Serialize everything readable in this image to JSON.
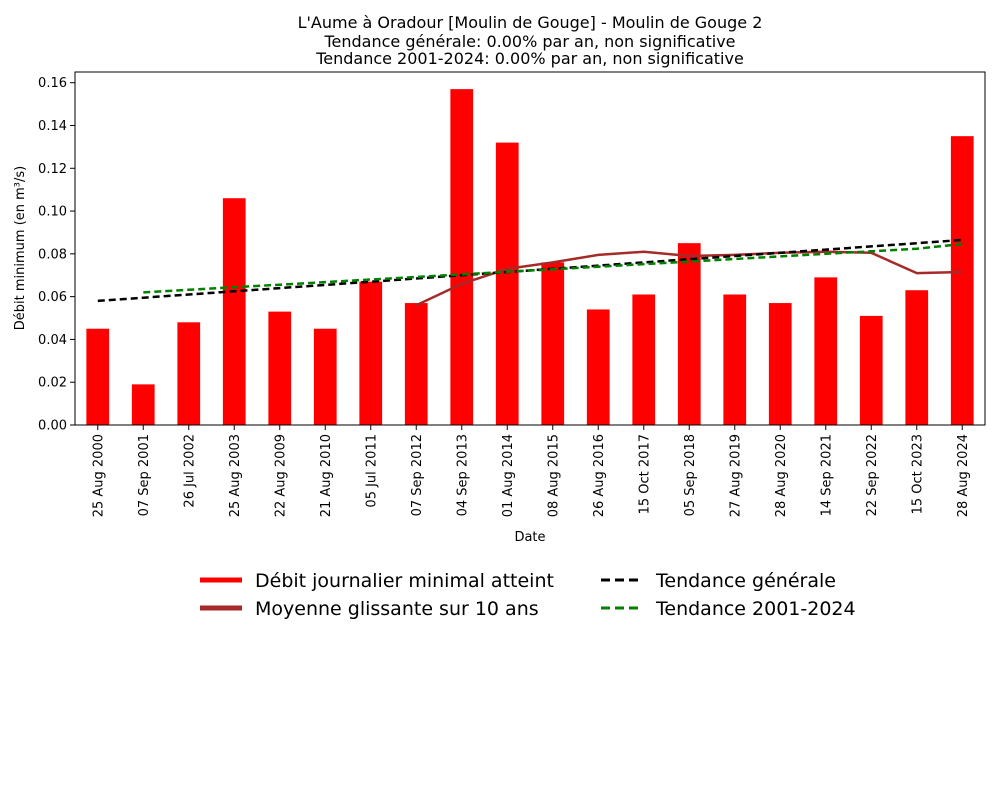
{
  "chart_data": {
    "type": "bar",
    "title": [
      "L'Aume à Oradour [Moulin de Gouge] - Moulin de Gouge 2",
      "Tendance générale: 0.00% par an, non significative",
      "Tendance 2001-2024: 0.00% par an, non significative"
    ],
    "xlabel": "Date",
    "ylabel": "Débit minimum (en m³/s)",
    "ylim": [
      0,
      0.165
    ],
    "yticks": [
      "0.00",
      "0.02",
      "0.04",
      "0.06",
      "0.08",
      "0.10",
      "0.12",
      "0.14",
      "0.16"
    ],
    "categories": [
      "25 Aug 2000",
      "07 Sep 2001",
      "26 Jul 2002",
      "25 Aug 2003",
      "22 Aug 2009",
      "21 Aug 2010",
      "05 Jul 2011",
      "07 Sep 2012",
      "04 Sep 2013",
      "01 Aug 2014",
      "08 Aug 2015",
      "26 Aug 2016",
      "15 Oct 2017",
      "05 Sep 2018",
      "27 Aug 2019",
      "28 Aug 2020",
      "14 Sep 2021",
      "22 Sep 2022",
      "15 Oct 2023",
      "28 Aug 2024"
    ],
    "series": [
      {
        "name": "Débit journalier minimal atteint",
        "kind": "bar",
        "color": "#ff0000",
        "values": [
          0.045,
          0.019,
          0.048,
          0.106,
          0.053,
          0.045,
          0.067,
          0.057,
          0.157,
          0.132,
          0.076,
          0.054,
          0.061,
          0.085,
          0.061,
          0.057,
          0.069,
          0.051,
          0.063,
          0.135
        ]
      },
      {
        "name": "Moyenne glissante sur 10 ans",
        "kind": "line",
        "color": "#a52a2a",
        "values": [
          null,
          null,
          null,
          null,
          null,
          null,
          null,
          0.056,
          0.066,
          0.073,
          0.076,
          0.0795,
          0.081,
          0.079,
          0.0795,
          0.0805,
          0.081,
          0.0805,
          0.071,
          0.0715
        ]
      },
      {
        "name": "Tendance générale",
        "kind": "dashed-line",
        "color": "#000000",
        "values": [
          0.058,
          0.0595,
          0.061,
          0.0625,
          0.064,
          0.0655,
          0.067,
          0.0685,
          0.07,
          0.0715,
          0.073,
          0.0745,
          0.076,
          0.0775,
          0.079,
          0.0805,
          0.082,
          0.0835,
          0.085,
          0.0865
        ]
      },
      {
        "name": "Tendance 2001-2024",
        "kind": "dashed-line",
        "color": "#008000",
        "values": [
          null,
          0.062,
          0.0632,
          0.0644,
          0.0656,
          0.0668,
          0.068,
          0.0692,
          0.0704,
          0.0716,
          0.0728,
          0.074,
          0.0752,
          0.0764,
          0.0776,
          0.0788,
          0.08,
          0.0812,
          0.0824,
          0.0846
        ]
      }
    ],
    "legend": {
      "placement": "bottom-center",
      "entries": [
        {
          "label": "Débit journalier minimal atteint",
          "color": "#ff0000",
          "style": "solid-thick"
        },
        {
          "label": "Tendance générale",
          "color": "#000000",
          "style": "dashed"
        },
        {
          "label": "Moyenne glissante sur 10 ans",
          "color": "#a52a2a",
          "style": "solid-thick"
        },
        {
          "label": "Tendance 2001-2024",
          "color": "#008000",
          "style": "dashed"
        }
      ]
    }
  }
}
